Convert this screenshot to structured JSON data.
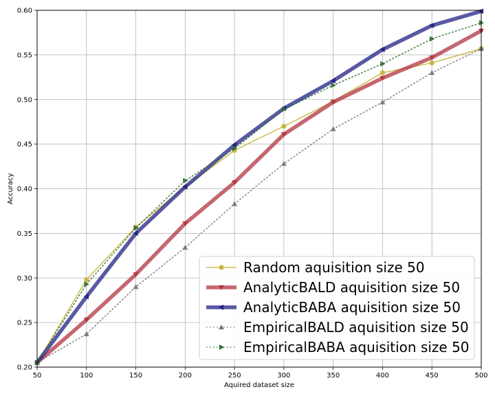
{
  "chart_data": {
    "type": "line",
    "title": "",
    "xlabel": "Aquired dataset size",
    "ylabel": "Accuracy",
    "xlim": [
      50,
      500
    ],
    "ylim": [
      0.2,
      0.6
    ],
    "grid": true,
    "legend_position": "bottom-right",
    "x": [
      50,
      100,
      150,
      200,
      250,
      300,
      350,
      400,
      450,
      500
    ],
    "xticks": [
      "50",
      "100",
      "150",
      "200",
      "250",
      "300",
      "350",
      "400",
      "450",
      "500"
    ],
    "yticks": [
      "0.20",
      "0.25",
      "0.30",
      "0.35",
      "0.40",
      "0.45",
      "0.50",
      "0.55",
      "0.60"
    ],
    "series": [
      {
        "name": "Random aquisition size 50",
        "color": "#c9b43b",
        "style": "solid",
        "width": "thin",
        "marker": "circle",
        "values": [
          0.205,
          0.298,
          0.357,
          0.402,
          0.443,
          0.47,
          0.498,
          0.53,
          0.541,
          0.557
        ]
      },
      {
        "name": "AnalyticBALD aquisition size 50",
        "color": "#b2343f",
        "style": "solid",
        "width": "thick",
        "marker": "triangle-down",
        "values": [
          0.205,
          0.253,
          0.304,
          0.361,
          0.407,
          0.461,
          0.497,
          0.524,
          0.547,
          0.577
        ]
      },
      {
        "name": "AnalyticBABA aquisition size 50",
        "color": "#222284",
        "style": "solid",
        "width": "thick",
        "marker": "triangle-left",
        "values": [
          0.205,
          0.279,
          0.35,
          0.402,
          0.449,
          0.49,
          0.521,
          0.556,
          0.583,
          0.599
        ]
      },
      {
        "name": "EmpiricalBALD aquisition size 50",
        "color": "#777777",
        "style": "dotted",
        "width": "thin",
        "marker": "triangle-up",
        "values": [
          0.205,
          0.237,
          0.29,
          0.334,
          0.383,
          0.428,
          0.467,
          0.497,
          0.53,
          0.557
        ]
      },
      {
        "name": "EmpiricalBABA aquisition size 50",
        "color": "#2d6b2d",
        "style": "dotted",
        "width": "thin",
        "marker": "triangle-right",
        "values": [
          0.205,
          0.293,
          0.356,
          0.409,
          0.445,
          0.489,
          0.516,
          0.54,
          0.568,
          0.586
        ]
      }
    ]
  }
}
